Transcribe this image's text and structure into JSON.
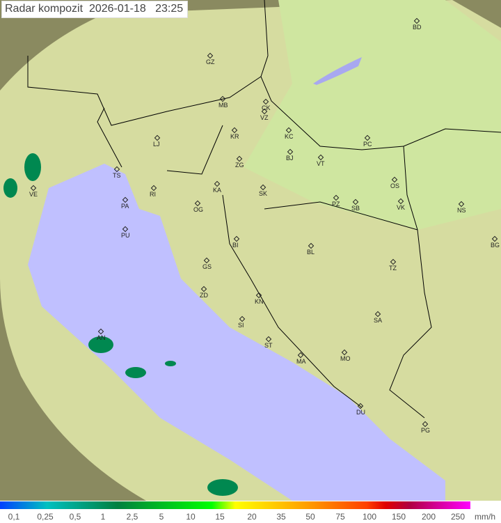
{
  "header": {
    "title": "Radar kompozit",
    "date": "2026-01-18",
    "time": "23:25"
  },
  "legend": {
    "unit": "mm/h",
    "labels": [
      "0,1",
      "0,25",
      "0,5",
      "1",
      "2,5",
      "5",
      "10",
      "15",
      "20",
      "35",
      "50",
      "75",
      "100",
      "150",
      "200",
      "250"
    ]
  },
  "cities": [
    "GZ",
    "BD",
    "MB",
    "CK",
    "VZ",
    "KR",
    "KC",
    "PC",
    "LJ",
    "ZG",
    "BJ",
    "VT",
    "TS",
    "VE",
    "KA",
    "SK",
    "RI",
    "OS",
    "PA",
    "OG",
    "PZ",
    "SB",
    "VK",
    "NS",
    "PU",
    "BI",
    "BL",
    "BG",
    "GS",
    "TZ",
    "ZD",
    "KN",
    "SA",
    "SI",
    "AN",
    "ST",
    "MA",
    "MO",
    "DU",
    "PG"
  ],
  "colors": {
    "sea": "#c0c0ff",
    "land": "#d8e0a8",
    "outside": "#808060",
    "rain": "#008850"
  }
}
